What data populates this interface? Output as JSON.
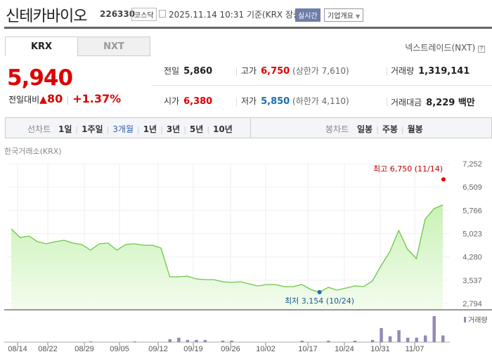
{
  "header": {
    "title": "신테카바이오",
    "code": "226330",
    "market": "코스닥",
    "datetime": "2025.11.14 10:31",
    "basis": "기준(KRX 장중)",
    "realtime": "실시간",
    "company_info": "기업개요"
  },
  "tabs": [
    {
      "label": "KRX",
      "active": true
    },
    {
      "label": "NXT",
      "active": false
    }
  ],
  "nxt_link": "넥스트레이드(NXT)",
  "help": "?",
  "quote": {
    "price": "5,940",
    "change_label": "전일대비",
    "change_icon": "up-triangle-icon",
    "change": "80",
    "change_pct": "+1.37%"
  },
  "stats": {
    "prev_label": "전일",
    "prev": "5,860",
    "high_label": "고가",
    "high": "6,750",
    "upper_limit": "(상한가 7,610)",
    "volume_label": "거래량",
    "volume": "1,319,141",
    "open_label": "시가",
    "open": "6,380",
    "low_label": "저가",
    "low": "5,850",
    "lower_limit": "(하한가 4,110)",
    "amount_label": "거래대금",
    "amount": "8,229 백만"
  },
  "toolbar": {
    "line_label": "선차트",
    "line_periods": [
      "1일",
      "1주일",
      "3개월",
      "1년",
      "3년",
      "5년",
      "10년"
    ],
    "active_period": "3개월",
    "candle_label": "봉차트",
    "candle_periods": [
      "일봉",
      "주봉",
      "월봉"
    ]
  },
  "exchange_label": "한국거래소(KRX)",
  "colors": {
    "up": "#dd0000",
    "down": "#1a6bb5",
    "line": "#6cc644",
    "volume": "#9688b8"
  },
  "chart_data": {
    "type": "area",
    "ylim": [
      2794,
      7252
    ],
    "yticks": [
      "7,252",
      "6,509",
      "5,766",
      "5,023",
      "4,280",
      "3,537",
      "2,794"
    ],
    "xticks": [
      "08/14",
      "08/22",
      "08/29",
      "09/05",
      "09/12",
      "09/19",
      "09/26",
      "10/02",
      "10/17",
      "10/24",
      "10/31",
      "11/07"
    ],
    "values": [
      5169,
      4900,
      4945,
      4766,
      4698,
      4766,
      4810,
      4721,
      4676,
      4497,
      4698,
      4721,
      4497,
      4676,
      4698,
      4654,
      4654,
      4564,
      3646,
      3646,
      3668,
      3578,
      3556,
      3556,
      3489,
      3466,
      3489,
      3422,
      3354,
      3399,
      3399,
      3332,
      3332,
      3399,
      3242,
      3154,
      3310,
      3220,
      3287,
      3354,
      3332,
      3511,
      4004,
      4452,
      5124,
      4519,
      4228,
      5482,
      5818,
      5940
    ],
    "high_annotation": "최고 6,750 (11/14)",
    "high_value": 6750,
    "low_annotation": "최저 3,154 (10/24)",
    "low_value": 3154,
    "volume_legend": "거래량",
    "volume_relative": [
      0,
      0,
      0,
      0,
      0,
      0,
      0,
      0,
      0,
      1,
      0,
      0,
      0,
      0,
      1,
      0,
      0,
      0,
      4,
      6,
      3,
      3,
      3,
      0,
      2,
      2,
      0,
      0,
      0,
      0,
      0,
      0,
      0,
      2,
      0,
      0,
      2,
      0,
      0,
      2,
      0,
      3,
      19,
      8,
      16,
      6,
      6,
      9,
      35,
      9
    ]
  }
}
